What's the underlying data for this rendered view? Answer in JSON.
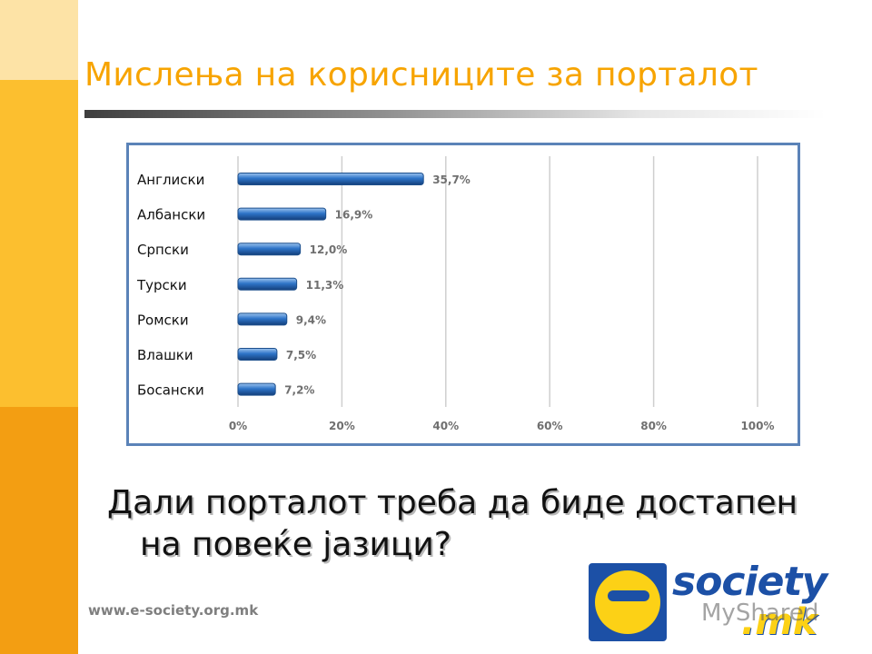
{
  "slide": {
    "title": "Мислења на корисниците за порталот",
    "question_line1": "Дали порталот треба да биде достапен",
    "question_line2": "на повеќе јазици?",
    "footer_url": "www.e-society.org.mk",
    "logo_text": "society",
    "logo_suffix": ".mk",
    "watermark": "MyShared"
  },
  "colors": {
    "title": "#f7a400",
    "bar": "#2e74c8",
    "frame": "#5b83b8",
    "stripe_light": "#fde3a6",
    "stripe_mid": "#fcbf2f",
    "stripe_dark": "#f39e12"
  },
  "chart_data": {
    "type": "bar",
    "orientation": "horizontal",
    "categories": [
      "Англиски",
      "Албански",
      "Српски",
      "Турски",
      "Ромски",
      "Влашки",
      "Босански"
    ],
    "values": [
      35.7,
      16.9,
      12.0,
      11.3,
      9.4,
      7.5,
      7.2
    ],
    "value_labels": [
      "35,7%",
      "16,9%",
      "12,0%",
      "11,3%",
      "9,4%",
      "7,5%",
      "7,2%"
    ],
    "xlim": [
      0,
      100
    ],
    "x_ticks": [
      "0%",
      "20%",
      "40%",
      "60%",
      "80%",
      "100%"
    ],
    "grid": "vertical",
    "legend": "none",
    "title": "",
    "xlabel": "",
    "ylabel": ""
  }
}
